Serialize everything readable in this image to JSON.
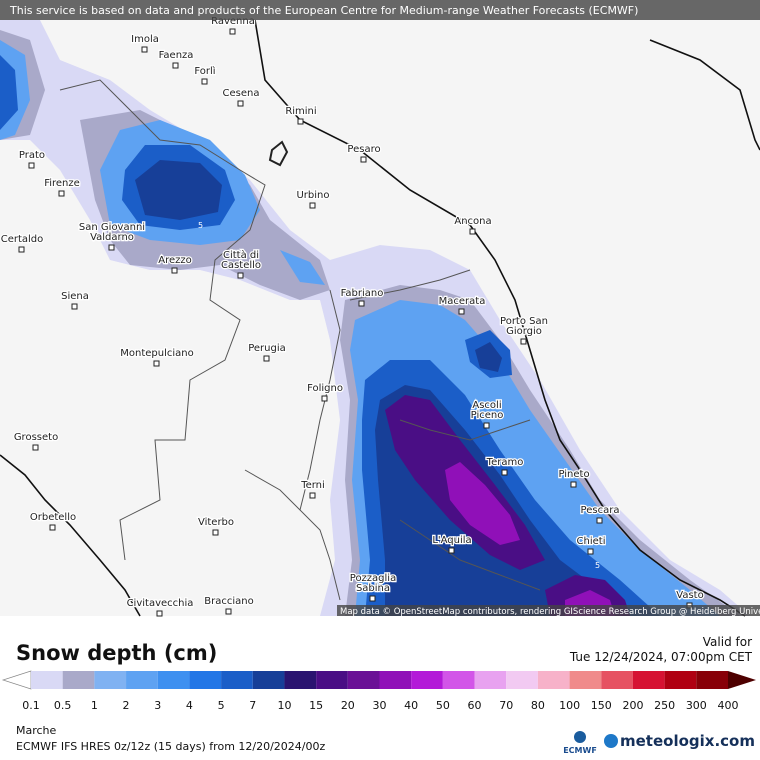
{
  "banner": "This service is based on data and products of the European Centre for Medium-range Weather Forecasts (ECMWF)",
  "attribution": "Map data © OpenStreetMap contributors, rendering GIScience Research Group @ Heidelberg University",
  "cities": [
    [
      "Ravenna"
    ],
    [
      "Imola"
    ],
    [
      "Faenza"
    ],
    [
      "Forlì"
    ],
    [
      "Cesena"
    ],
    [
      "Rimini"
    ],
    [
      "Pesaro"
    ],
    [
      "Prato"
    ],
    [
      "Firenze"
    ],
    [
      "Urbino"
    ],
    [
      "Ancona"
    ],
    [
      "San Giovanni",
      "Valdarno"
    ],
    [
      "Certaldo"
    ],
    [
      "Arezzo"
    ],
    [
      "Città di",
      "Castello"
    ],
    [
      "Siena"
    ],
    [
      "Fabriano"
    ],
    [
      "Macerata"
    ],
    [
      "Porto San",
      "Giorgio"
    ],
    [
      "Perugia"
    ],
    [
      "Montepulciano"
    ],
    [
      "Foligno"
    ],
    [
      "Ascoli",
      "Piceno"
    ],
    [
      "Grosseto"
    ],
    [
      "Teramo"
    ],
    [
      "Pineto"
    ],
    [
      "Terni"
    ],
    [
      "Pescara"
    ],
    [
      "Orbetello"
    ],
    [
      "Viterbo"
    ],
    [
      "Chieti"
    ],
    [
      "L'Aquila"
    ],
    [
      "Pozzaglia",
      "Sabina"
    ],
    [
      "Civitavecchia"
    ],
    [
      "Bracciano"
    ],
    [
      "Vasto"
    ]
  ],
  "contour_labels": [
    "5",
    "5"
  ],
  "legend": {
    "title": "Snow depth (cm)",
    "ticks": [
      0.1,
      0.5,
      1,
      2,
      3,
      4,
      5,
      7,
      10,
      15,
      20,
      30,
      40,
      50,
      60,
      70,
      80,
      100,
      150,
      200,
      250,
      300,
      400
    ],
    "colors": [
      "#d9d9f5",
      "#a9a9c9",
      "#80b2f2",
      "#5ea2f2",
      "#3e90f0",
      "#2276e6",
      "#1b5ec8",
      "#173f98",
      "#2a1470",
      "#4a0e85",
      "#6a1096",
      "#9010b8",
      "#b31ad8",
      "#d255e8",
      "#e8a2f0",
      "#f2caf2",
      "#f7b2c9",
      "#f08a8a",
      "#e65262",
      "#d61232",
      "#b00012",
      "#880008"
    ],
    "under_color": "#ffffff",
    "over_color": "#4e0000"
  },
  "valid_label": "Valid for",
  "valid_time": "Tue 12/24/2024, 07:00pm CET",
  "region": "Marche",
  "model": "ECMWF IFS HRES 0z/12z (15 days) from  12/20/2024/00z",
  "ecmwf_logo": "ECMWF",
  "brand": "meteologix.com"
}
